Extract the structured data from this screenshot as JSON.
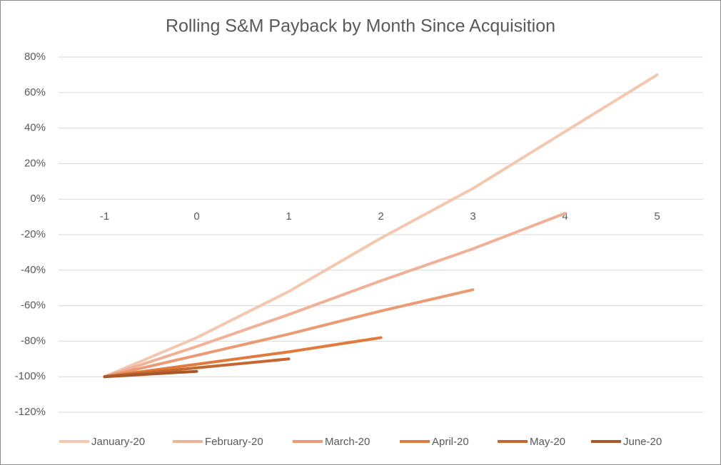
{
  "chart_data": {
    "type": "line",
    "title": "Rolling S&M Payback by Month Since Acquisition",
    "x": [
      -1,
      0,
      1,
      2,
      3,
      4,
      5
    ],
    "series": [
      {
        "name": "January-20",
        "color": "#f4c7b1",
        "values": [
          -100,
          -78,
          -52,
          -22,
          6,
          38,
          70
        ]
      },
      {
        "name": "February-20",
        "color": "#f0b196",
        "values": [
          -100,
          -83,
          -65,
          -46,
          -28,
          -8,
          null
        ]
      },
      {
        "name": "March-20",
        "color": "#eb9a73",
        "values": [
          -100,
          -88,
          -76,
          -63,
          -51,
          null,
          null
        ]
      },
      {
        "name": "April-20",
        "color": "#e07b3d",
        "values": [
          -100,
          -93,
          -86,
          -78,
          null,
          null,
          null
        ]
      },
      {
        "name": "May-20",
        "color": "#c5682f",
        "values": [
          -100,
          -95,
          -90,
          null,
          null,
          null,
          null
        ]
      },
      {
        "name": "June-20",
        "color": "#a8582a",
        "values": [
          -100,
          -97,
          null,
          null,
          null,
          null,
          null
        ]
      }
    ],
    "xlim": [
      -1.5,
      5.5
    ],
    "xticks": [
      -1,
      0,
      1,
      2,
      3,
      4,
      5
    ],
    "ylim": [
      -120,
      80
    ],
    "yticks": [
      {
        "value": -120,
        "label": "-120%"
      },
      {
        "value": -100,
        "label": "-100%"
      },
      {
        "value": -80,
        "label": "-80%"
      },
      {
        "value": -60,
        "label": "-60%"
      },
      {
        "value": -40,
        "label": "-40%"
      },
      {
        "value": -20,
        "label": "-20%"
      },
      {
        "value": 0,
        "label": "0%"
      },
      {
        "value": 20,
        "label": "20%"
      },
      {
        "value": 40,
        "label": "40%"
      },
      {
        "value": 60,
        "label": "60%"
      },
      {
        "value": 80,
        "label": "80%"
      }
    ],
    "grid": true
  }
}
